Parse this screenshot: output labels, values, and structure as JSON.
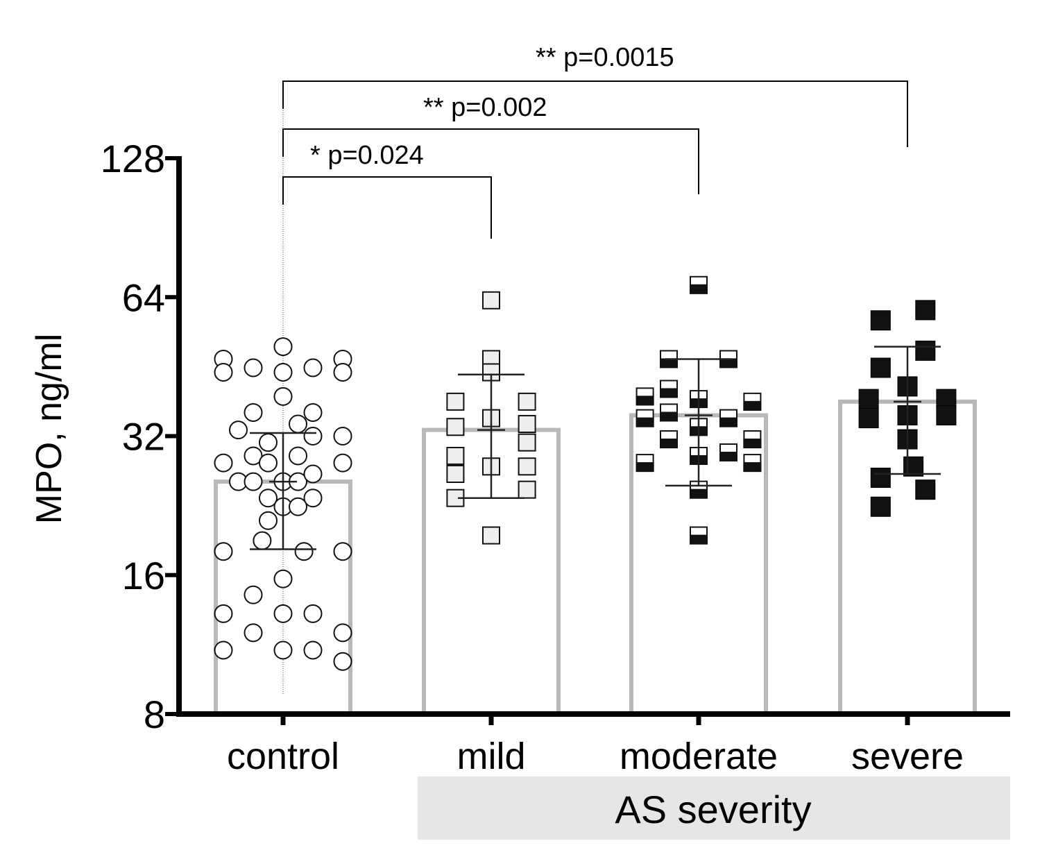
{
  "chart_data": {
    "type": "bar",
    "scale": "log2",
    "ylabel": "MPO, ng/ml",
    "ylim": [
      8,
      128
    ],
    "yticks": [
      8,
      16,
      32,
      64,
      128
    ],
    "categories": [
      "control",
      "mild",
      "moderate",
      "severe"
    ],
    "group_label": "AS severity",
    "colors": {
      "bar_outline": "#b8b8b8",
      "group_band": "#e6e6e6",
      "axis": "#000000",
      "mild_fill": "#eeeeee",
      "severe_fill": "#111111"
    },
    "bars": [
      {
        "category": "control",
        "mean": 25.5,
        "err_low": 18.2,
        "err_high": 32.5,
        "marker": "circle-open"
      },
      {
        "category": "mild",
        "mean": 33.0,
        "err_low": 23.5,
        "err_high": 43.5,
        "marker": "square-light"
      },
      {
        "category": "moderate",
        "mean": 35.5,
        "err_low": 25.0,
        "err_high": 47.0,
        "marker": "square-half"
      },
      {
        "category": "severe",
        "mean": 38.0,
        "err_low": 26.5,
        "err_high": 50.0,
        "marker": "square-filled"
      }
    ],
    "points": [
      [
        {
          "dx": 0,
          "y": 50
        },
        {
          "dx": -2,
          "y": 47
        },
        {
          "dx": 2,
          "y": 47
        },
        {
          "dx": -1,
          "y": 45
        },
        {
          "dx": 1,
          "y": 45
        },
        {
          "dx": -2,
          "y": 44
        },
        {
          "dx": 0,
          "y": 44
        },
        {
          "dx": 2,
          "y": 44
        },
        {
          "dx": 0,
          "y": 39
        },
        {
          "dx": -1,
          "y": 36
        },
        {
          "dx": 1,
          "y": 36
        },
        {
          "dx": -1.5,
          "y": 33
        },
        {
          "dx": 0.5,
          "y": 34
        },
        {
          "dx": -0.5,
          "y": 31
        },
        {
          "dx": 1,
          "y": 32
        },
        {
          "dx": 2,
          "y": 32
        },
        {
          "dx": -2,
          "y": 28
        },
        {
          "dx": -1,
          "y": 29
        },
        {
          "dx": 0.5,
          "y": 29
        },
        {
          "dx": -0.5,
          "y": 28
        },
        {
          "dx": 2,
          "y": 28
        },
        {
          "dx": -1.5,
          "y": 25.5
        },
        {
          "dx": -1,
          "y": 25.5
        },
        {
          "dx": 0,
          "y": 25.5
        },
        {
          "dx": 0.5,
          "y": 25.5
        },
        {
          "dx": 1,
          "y": 26.5
        },
        {
          "dx": -0.5,
          "y": 23.5
        },
        {
          "dx": 1,
          "y": 23.5
        },
        {
          "dx": 0,
          "y": 22.5
        },
        {
          "dx": 0.5,
          "y": 22.5
        },
        {
          "dx": -0.5,
          "y": 21
        },
        {
          "dx": -0.7,
          "y": 19
        },
        {
          "dx": -2,
          "y": 18
        },
        {
          "dx": 0.7,
          "y": 18
        },
        {
          "dx": 2,
          "y": 18
        },
        {
          "dx": 0,
          "y": 15.7
        },
        {
          "dx": -1,
          "y": 14.5
        },
        {
          "dx": -2,
          "y": 13.2
        },
        {
          "dx": 0,
          "y": 13.2
        },
        {
          "dx": 1,
          "y": 13.2
        },
        {
          "dx": -1,
          "y": 12
        },
        {
          "dx": 2,
          "y": 12
        },
        {
          "dx": -2,
          "y": 11
        },
        {
          "dx": 0,
          "y": 11
        },
        {
          "dx": 1,
          "y": 11
        },
        {
          "dx": 2,
          "y": 10.4
        }
      ],
      [
        {
          "dx": 0,
          "y": 63
        },
        {
          "dx": 0,
          "y": 47
        },
        {
          "dx": 0,
          "y": 44
        },
        {
          "dx": -1.2,
          "y": 38
        },
        {
          "dx": 1.2,
          "y": 38
        },
        {
          "dx": 0,
          "y": 35
        },
        {
          "dx": -1.2,
          "y": 33.5
        },
        {
          "dx": 1.2,
          "y": 34
        },
        {
          "dx": 1.2,
          "y": 31
        },
        {
          "dx": -1.2,
          "y": 29
        },
        {
          "dx": 0,
          "y": 27.5
        },
        {
          "dx": 1.2,
          "y": 27.5
        },
        {
          "dx": -1.2,
          "y": 26.5
        },
        {
          "dx": 1.2,
          "y": 24.5
        },
        {
          "dx": -1.2,
          "y": 23.5
        },
        {
          "dx": 0,
          "y": 19.5
        }
      ],
      [
        {
          "dx": 0,
          "y": 68
        },
        {
          "dx": -1,
          "y": 47
        },
        {
          "dx": 1,
          "y": 47
        },
        {
          "dx": -1.8,
          "y": 39
        },
        {
          "dx": -1,
          "y": 40.5
        },
        {
          "dx": 0,
          "y": 38.5
        },
        {
          "dx": 1.8,
          "y": 38
        },
        {
          "dx": -1,
          "y": 36
        },
        {
          "dx": -1.8,
          "y": 35
        },
        {
          "dx": 1,
          "y": 35
        },
        {
          "dx": 0,
          "y": 33.5
        },
        {
          "dx": -1,
          "y": 31.5
        },
        {
          "dx": 1.8,
          "y": 31.5
        },
        {
          "dx": 1,
          "y": 29.5
        },
        {
          "dx": 0,
          "y": 29
        },
        {
          "dx": -1.8,
          "y": 28
        },
        {
          "dx": 1.8,
          "y": 28
        },
        {
          "dx": 0,
          "y": 24.5
        },
        {
          "dx": 0,
          "y": 19.5
        }
      ],
      [
        {
          "dx": 0.6,
          "y": 60
        },
        {
          "dx": -0.9,
          "y": 57
        },
        {
          "dx": 0.6,
          "y": 49
        },
        {
          "dx": -0.9,
          "y": 45
        },
        {
          "dx": 0,
          "y": 41
        },
        {
          "dx": -1.3,
          "y": 38.5
        },
        {
          "dx": 1.3,
          "y": 38.5
        },
        {
          "dx": 0,
          "y": 35.5
        },
        {
          "dx": -1.3,
          "y": 35
        },
        {
          "dx": 1.3,
          "y": 35.5
        },
        {
          "dx": 0,
          "y": 31.5
        },
        {
          "dx": 0.2,
          "y": 27.5
        },
        {
          "dx": -0.9,
          "y": 26
        },
        {
          "dx": 0.6,
          "y": 24.5
        },
        {
          "dx": -0.9,
          "y": 22.5
        }
      ]
    ],
    "significance": [
      {
        "from": "control",
        "to": "mild",
        "label": "* p=0.024"
      },
      {
        "from": "control",
        "to": "moderate",
        "label": "** p=0.002"
      },
      {
        "from": "control",
        "to": "severe",
        "label": "** p=0.0015"
      }
    ]
  }
}
